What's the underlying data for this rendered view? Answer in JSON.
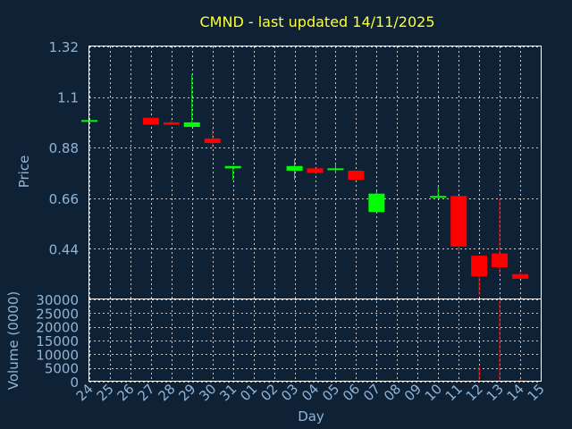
{
  "chart_data": {
    "type": "candlestick",
    "title": "CMND - last updated 14/11/2025",
    "xlabel": "Day",
    "ylabel_price": "Price",
    "ylabel_volume": "Volume (0000)",
    "x_ticks": [
      "24",
      "25",
      "26",
      "27",
      "28",
      "29",
      "30",
      "31",
      "01",
      "02",
      "03",
      "04",
      "05",
      "06",
      "07",
      "08",
      "09",
      "10",
      "11",
      "12",
      "13",
      "14",
      "15"
    ],
    "price_ticks": [
      "1.32",
      "1.1",
      "0.88",
      "0.66",
      "0.44"
    ],
    "price_tick_values": [
      1.32,
      1.1,
      0.88,
      0.66,
      0.44
    ],
    "volume_ticks": [
      "30000",
      "25000",
      "20000",
      "15000",
      "10000",
      "5000",
      "0"
    ],
    "volume_tick_values": [
      30000,
      25000,
      20000,
      15000,
      10000,
      5000,
      0
    ],
    "price_range": [
      0.22,
      1.32
    ],
    "volume_range": [
      0,
      30000
    ],
    "grid": true,
    "colors": {
      "up": "#00ff00",
      "down": "#ff0000",
      "title": "#ffff33",
      "axis_text": "#8fb5d9",
      "background": "#0f2135"
    },
    "candles": [
      {
        "day": "24",
        "open": 1.0,
        "high": 1.0,
        "low": 1.0,
        "close": 1.0,
        "volume": 0
      },
      {
        "day": "27",
        "open": 1.01,
        "high": 1.01,
        "low": 0.98,
        "close": 0.98,
        "volume": 0
      },
      {
        "day": "28",
        "open": 0.99,
        "high": 1.0,
        "low": 0.98,
        "close": 0.98,
        "volume": 0
      },
      {
        "day": "29",
        "open": 0.97,
        "high": 1.2,
        "low": 0.97,
        "close": 0.99,
        "volume": 0
      },
      {
        "day": "30",
        "open": 0.92,
        "high": 0.96,
        "low": 0.88,
        "close": 0.9,
        "volume": 0
      },
      {
        "day": "31",
        "open": 0.79,
        "high": 0.8,
        "low": 0.74,
        "close": 0.8,
        "volume": 0
      },
      {
        "day": "03",
        "open": 0.78,
        "high": 0.83,
        "low": 0.74,
        "close": 0.8,
        "volume": 0
      },
      {
        "day": "04",
        "open": 0.79,
        "high": 0.79,
        "low": 0.77,
        "close": 0.77,
        "volume": 0
      },
      {
        "day": "05",
        "open": 0.79,
        "high": 0.81,
        "low": 0.77,
        "close": 0.79,
        "volume": 0
      },
      {
        "day": "06",
        "open": 0.78,
        "high": 0.78,
        "low": 0.74,
        "close": 0.74,
        "volume": 0
      },
      {
        "day": "07",
        "open": 0.6,
        "high": 0.69,
        "low": 0.6,
        "close": 0.68,
        "volume": 0
      },
      {
        "day": "10",
        "open": 0.67,
        "high": 0.71,
        "low": 0.66,
        "close": 0.67,
        "volume": 0
      },
      {
        "day": "11",
        "open": 0.67,
        "high": 0.67,
        "low": 0.43,
        "close": 0.45,
        "volume": 800
      },
      {
        "day": "12",
        "open": 0.41,
        "high": 0.41,
        "low": 0.24,
        "close": 0.32,
        "volume": 5500
      },
      {
        "day": "13",
        "open": 0.42,
        "high": 0.66,
        "low": 0.33,
        "close": 0.36,
        "volume": 30000
      },
      {
        "day": "14",
        "open": 0.33,
        "high": 0.34,
        "low": 0.31,
        "close": 0.31,
        "volume": 1000
      }
    ]
  }
}
